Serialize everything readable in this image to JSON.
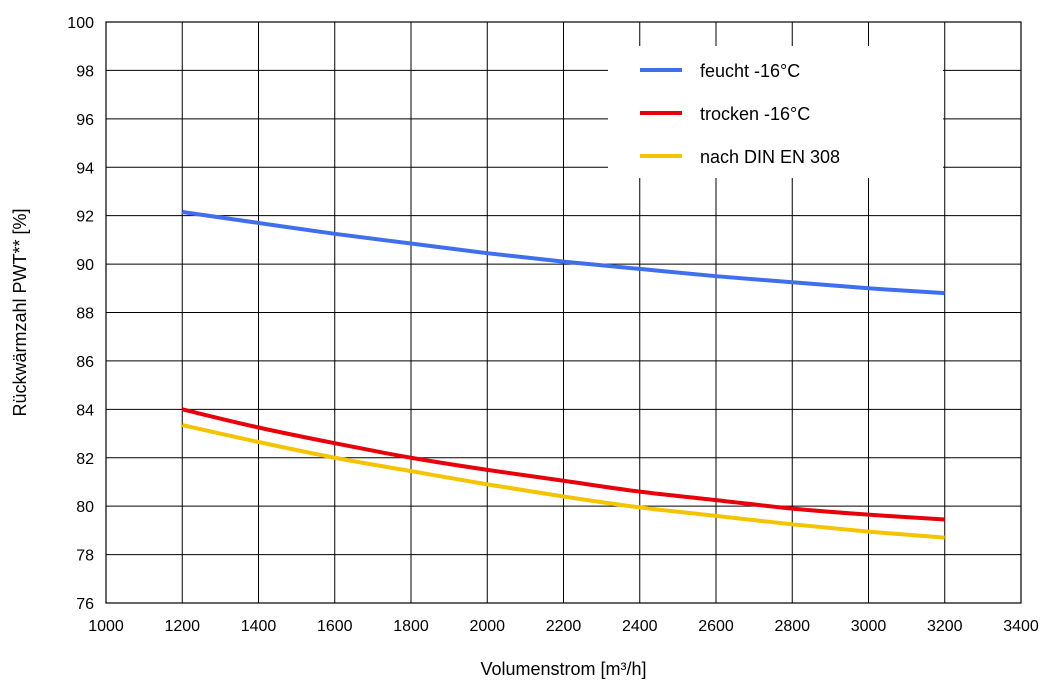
{
  "chart_data": {
    "type": "line",
    "xlabel": "Volumenstrom [m³/h]",
    "ylabel": "Rückwärmzahl PWT** [%]",
    "xlim": [
      1000,
      3400
    ],
    "ylim": [
      76,
      100
    ],
    "x_ticks": [
      1000,
      1200,
      1400,
      1600,
      1800,
      2000,
      2200,
      2400,
      2600,
      2800,
      3000,
      3200,
      3400
    ],
    "y_ticks": [
      76,
      78,
      80,
      82,
      84,
      86,
      88,
      90,
      92,
      94,
      96,
      98,
      100
    ],
    "grid": true,
    "legend_position": "top-right",
    "series": [
      {
        "name": "feucht -16°C",
        "color": "#3f6fec",
        "x": [
          1200,
          1400,
          1600,
          1800,
          2000,
          2200,
          2400,
          2600,
          2800,
          3000,
          3200
        ],
        "y": [
          92.15,
          91.7,
          91.25,
          90.85,
          90.45,
          90.1,
          89.8,
          89.5,
          89.25,
          89.0,
          88.8
        ]
      },
      {
        "name": "trocken -16°C",
        "color": "#e8000b",
        "x": [
          1200,
          1400,
          1600,
          1800,
          2000,
          2200,
          2400,
          2600,
          2800,
          3000,
          3200
        ],
        "y": [
          84.0,
          83.25,
          82.6,
          82.0,
          81.5,
          81.05,
          80.6,
          80.25,
          79.9,
          79.65,
          79.45
        ]
      },
      {
        "name": "nach DIN EN 308",
        "color": "#f5c400",
        "x": [
          1200,
          1400,
          1600,
          1800,
          2000,
          2200,
          2400,
          2600,
          2800,
          3000,
          3200
        ],
        "y": [
          83.35,
          82.65,
          82.0,
          81.45,
          80.9,
          80.4,
          79.95,
          79.6,
          79.25,
          78.95,
          78.7
        ]
      }
    ]
  }
}
